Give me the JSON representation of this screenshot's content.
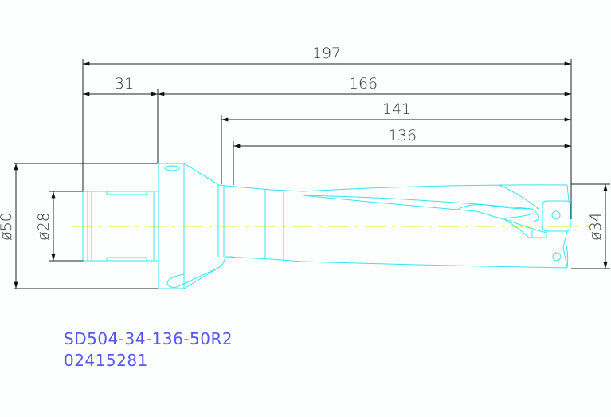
{
  "dimensions": {
    "overall_length": "197",
    "shank_length": "31",
    "body_from_flange": "166",
    "body_length": "141",
    "drilling_depth": "136",
    "flange_diameter": "ø50",
    "shank_diameter": "ø28",
    "drill_diameter": "ø34"
  },
  "part": {
    "designation": "SD504-34-136-50R2",
    "article_number": "02415281"
  },
  "colors": {
    "outline": "#33e6f0",
    "centerline": "#e8f040",
    "dimension": "#222222",
    "label": "#5656f5"
  }
}
